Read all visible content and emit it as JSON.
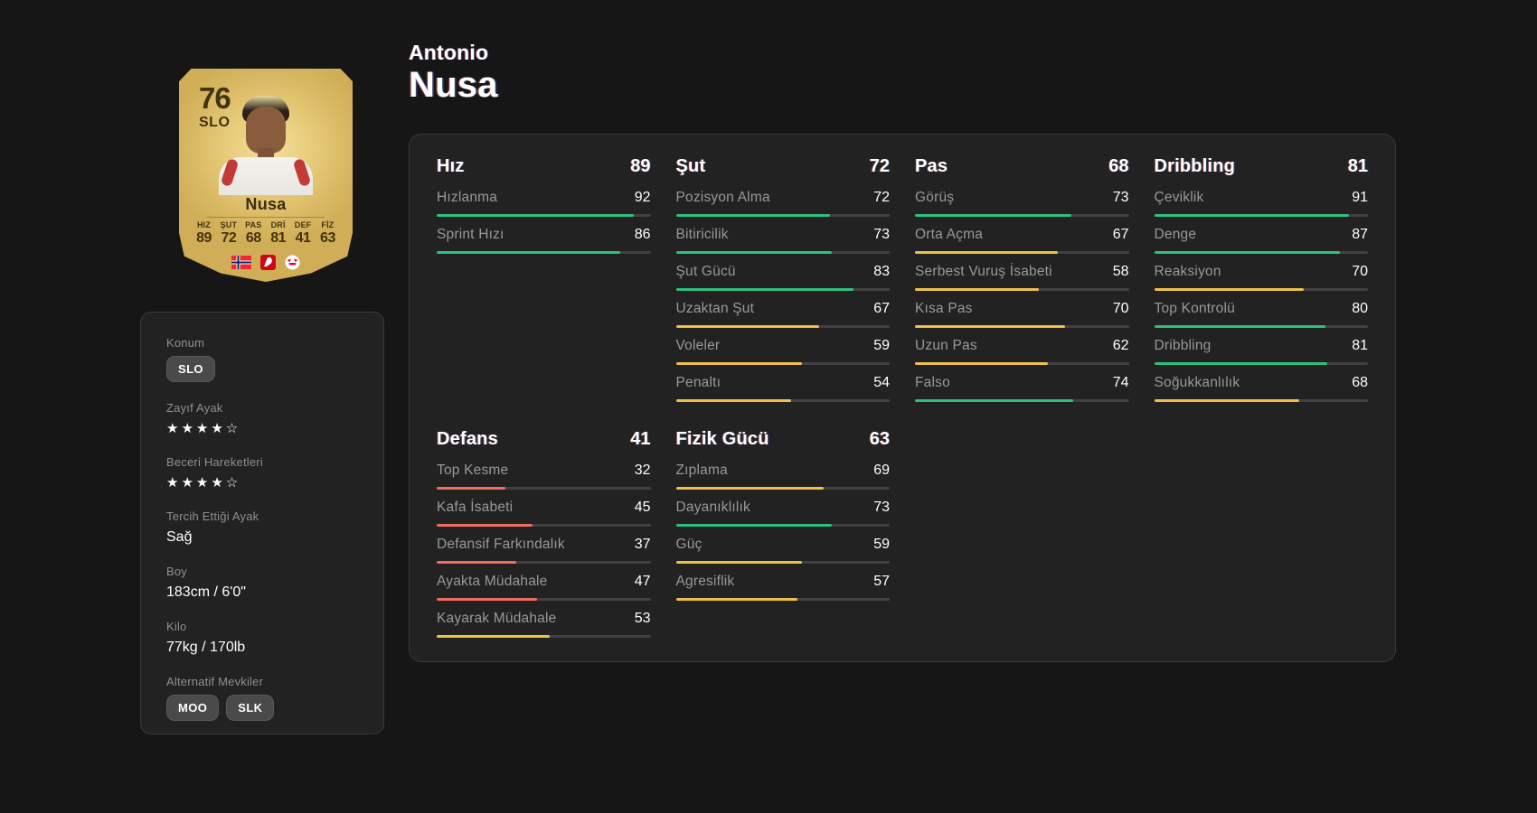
{
  "header": {
    "first_name": "Antonio",
    "last_name": "Nusa"
  },
  "card": {
    "rating": "76",
    "position": "SLO",
    "name": "Nusa",
    "mini_stats": [
      {
        "label": "HIZ",
        "value": "89"
      },
      {
        "label": "ŞUT",
        "value": "72"
      },
      {
        "label": "PAS",
        "value": "68"
      },
      {
        "label": "DRİ",
        "value": "81"
      },
      {
        "label": "DEF",
        "value": "41"
      },
      {
        "label": "FİZ",
        "value": "63"
      }
    ],
    "icons": [
      "norway-flag",
      "bundesliga-logo",
      "rb-leipzig-crest"
    ]
  },
  "profile": {
    "items": [
      {
        "label": "Konum",
        "type": "badges",
        "badges": [
          "SLO"
        ]
      },
      {
        "label": "Zayıf Ayak",
        "type": "stars",
        "value": 4,
        "max": 5
      },
      {
        "label": "Beceri Hareketleri",
        "type": "stars",
        "value": 4,
        "max": 5
      },
      {
        "label": "Tercih Ettiği Ayak",
        "type": "text",
        "value": "Sağ"
      },
      {
        "label": "Boy",
        "type": "text",
        "value": "183cm / 6'0\""
      },
      {
        "label": "Kilo",
        "type": "text",
        "value": "77kg / 170lb"
      },
      {
        "label": "Alternatif Mevkiler",
        "type": "badges",
        "badges": [
          "MOO",
          "SLK"
        ]
      }
    ]
  },
  "colors": {
    "green": "#2bc17e",
    "yellow": "#f0c04c",
    "red": "#ef6e61",
    "track": "#414141",
    "card_gold": "#e6ca78",
    "panel_bg": "#222222",
    "page_bg": "#161616"
  },
  "stats": {
    "groups": [
      {
        "name": "Hız",
        "value": "89",
        "stats": [
          {
            "label": "Hızlanma",
            "value": 92,
            "color": "green"
          },
          {
            "label": "Sprint Hızı",
            "value": 86,
            "color": "green"
          }
        ]
      },
      {
        "name": "Şut",
        "value": "72",
        "stats": [
          {
            "label": "Pozisyon Alma",
            "value": 72,
            "color": "green"
          },
          {
            "label": "Bitiricilik",
            "value": 73,
            "color": "green"
          },
          {
            "label": "Şut Gücü",
            "value": 83,
            "color": "green"
          },
          {
            "label": "Uzaktan Şut",
            "value": 67,
            "color": "yellow"
          },
          {
            "label": "Voleler",
            "value": 59,
            "color": "yellow"
          },
          {
            "label": "Penaltı",
            "value": 54,
            "color": "yellow"
          }
        ]
      },
      {
        "name": "Pas",
        "value": "68",
        "stats": [
          {
            "label": "Görüş",
            "value": 73,
            "color": "green"
          },
          {
            "label": "Orta Açma",
            "value": 67,
            "color": "yellow"
          },
          {
            "label": "Serbest Vuruş İsabeti",
            "value": 58,
            "color": "yellow"
          },
          {
            "label": "Kısa Pas",
            "value": 70,
            "color": "yellow"
          },
          {
            "label": "Uzun Pas",
            "value": 62,
            "color": "yellow"
          },
          {
            "label": "Falso",
            "value": 74,
            "color": "green"
          }
        ]
      },
      {
        "name": "Dribbling",
        "value": "81",
        "stats": [
          {
            "label": "Çeviklik",
            "value": 91,
            "color": "green"
          },
          {
            "label": "Denge",
            "value": 87,
            "color": "green"
          },
          {
            "label": "Reaksiyon",
            "value": 70,
            "color": "yellow"
          },
          {
            "label": "Top Kontrolü",
            "value": 80,
            "color": "green"
          },
          {
            "label": "Dribbling",
            "value": 81,
            "color": "green"
          },
          {
            "label": "Soğukkanlılık",
            "value": 68,
            "color": "yellow"
          }
        ]
      },
      {
        "name": "Defans",
        "value": "41",
        "stats": [
          {
            "label": "Top Kesme",
            "value": 32,
            "color": "red"
          },
          {
            "label": "Kafa İsabeti",
            "value": 45,
            "color": "red"
          },
          {
            "label": "Defansif Farkındalık",
            "value": 37,
            "color": "red"
          },
          {
            "label": "Ayakta Müdahale",
            "value": 47,
            "color": "red"
          },
          {
            "label": "Kayarak Müdahale",
            "value": 53,
            "color": "yellow"
          }
        ]
      },
      {
        "name": "Fizik Gücü",
        "value": "63",
        "stats": [
          {
            "label": "Zıplama",
            "value": 69,
            "color": "yellow"
          },
          {
            "label": "Dayanıklılık",
            "value": 73,
            "color": "green"
          },
          {
            "label": "Güç",
            "value": 59,
            "color": "yellow"
          },
          {
            "label": "Agresiflik",
            "value": 57,
            "color": "yellow"
          }
        ]
      }
    ]
  }
}
